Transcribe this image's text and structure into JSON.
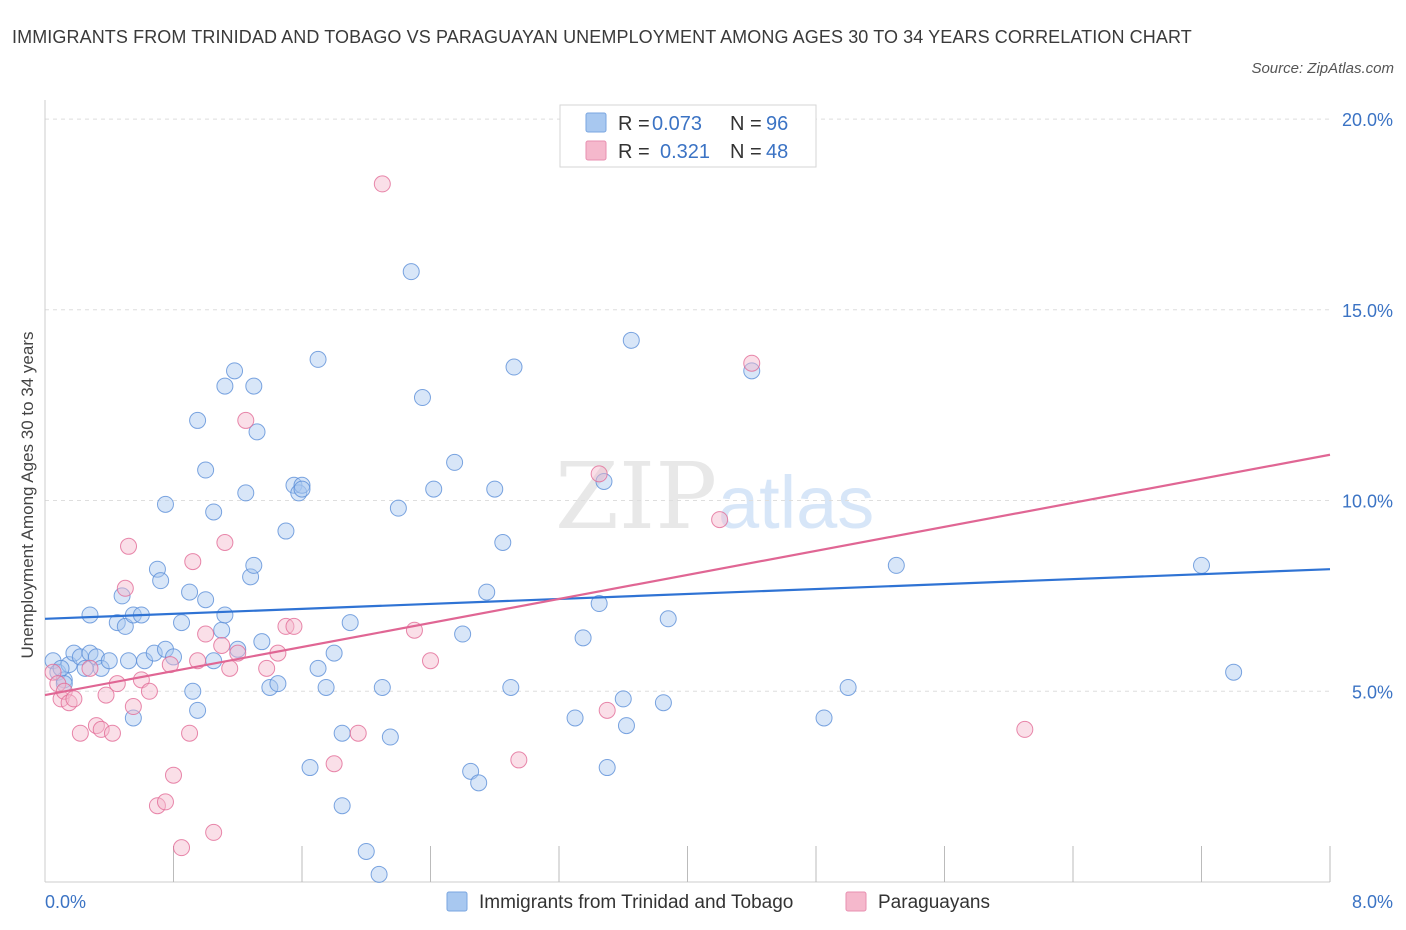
{
  "title": "IMMIGRANTS FROM TRINIDAD AND TOBAGO VS PARAGUAYAN UNEMPLOYMENT AMONG AGES 30 TO 34 YEARS CORRELATION CHART",
  "source": "Source: ZipAtlas.com",
  "watermark": {
    "zip": "ZIP",
    "atlas": "atlas"
  },
  "legend": {
    "rows": [
      {
        "r_label": "R =",
        "r_value": "0.073",
        "n_label": "N =",
        "n_value": "96",
        "color": "#a8c8f0"
      },
      {
        "r_label": "R =",
        "r_value": "0.321",
        "n_label": "N =",
        "n_value": "48",
        "color": "#f5b8cc"
      }
    ]
  },
  "bottom_legend": [
    "Immigrants from Trinidad and Tobago",
    "Paraguayans"
  ],
  "chart_data": {
    "type": "scatter",
    "title": "IMMIGRANTS FROM TRINIDAD AND TOBAGO VS PARAGUAYAN UNEMPLOYMENT AMONG AGES 30 TO 34 YEARS CORRELATION CHART",
    "xlabel": "",
    "ylabel": "Unemployment Among Ages 30 to 34 years",
    "xlim": [
      0,
      8
    ],
    "ylim": [
      0,
      20.5
    ],
    "x_tick_labels": [
      "0.0%",
      "8.0%"
    ],
    "y_ticks": [
      5,
      10,
      15,
      20
    ],
    "y_tick_labels": [
      "5.0%",
      "10.0%",
      "15.0%",
      "20.0%"
    ],
    "grid": true,
    "legend_position": "top-center",
    "series": [
      {
        "name": "Immigrants from Trinidad and Tobago",
        "color": "#5b8fd8",
        "fill": "#a8c8f0",
        "trend": [
          [
            0,
            6.9
          ],
          [
            8,
            8.2
          ]
        ],
        "points": [
          [
            0.05,
            5.8
          ],
          [
            0.08,
            5.5
          ],
          [
            0.12,
            5.3
          ],
          [
            0.15,
            5.7
          ],
          [
            0.18,
            6.0
          ],
          [
            0.22,
            5.9
          ],
          [
            0.25,
            5.6
          ],
          [
            0.28,
            6.0
          ],
          [
            0.32,
            5.9
          ],
          [
            0.35,
            5.6
          ],
          [
            0.1,
            5.6
          ],
          [
            0.12,
            5.2
          ],
          [
            0.4,
            5.8
          ],
          [
            0.45,
            6.8
          ],
          [
            0.5,
            6.7
          ],
          [
            0.55,
            7.0
          ],
          [
            0.6,
            7.0
          ],
          [
            0.28,
            7.0
          ],
          [
            0.48,
            7.5
          ],
          [
            0.52,
            5.8
          ],
          [
            0.62,
            5.8
          ],
          [
            0.68,
            6.0
          ],
          [
            0.75,
            6.1
          ],
          [
            0.8,
            5.9
          ],
          [
            0.85,
            6.8
          ],
          [
            0.9,
            7.6
          ],
          [
            0.92,
            5.0
          ],
          [
            0.95,
            4.5
          ],
          [
            1.0,
            7.4
          ],
          [
            1.05,
            5.8
          ],
          [
            1.1,
            6.6
          ],
          [
            1.12,
            7.0
          ],
          [
            1.2,
            6.1
          ],
          [
            1.25,
            10.2
          ],
          [
            1.28,
            8.0
          ],
          [
            1.3,
            8.3
          ],
          [
            1.35,
            6.3
          ],
          [
            1.4,
            5.1
          ],
          [
            1.45,
            5.2
          ],
          [
            1.5,
            9.2
          ],
          [
            1.55,
            10.4
          ],
          [
            1.58,
            10.2
          ],
          [
            1.6,
            10.4
          ],
          [
            1.65,
            3.0
          ],
          [
            1.7,
            5.6
          ],
          [
            1.75,
            5.1
          ],
          [
            1.8,
            6.0
          ],
          [
            1.85,
            3.9
          ],
          [
            1.9,
            6.8
          ],
          [
            0.55,
            4.3
          ],
          [
            0.7,
            8.2
          ],
          [
            0.72,
            7.9
          ],
          [
            0.75,
            9.9
          ],
          [
            0.95,
            12.1
          ],
          [
            1.0,
            10.8
          ],
          [
            1.05,
            9.7
          ],
          [
            1.12,
            13.0
          ],
          [
            1.18,
            13.4
          ],
          [
            1.3,
            13.0
          ],
          [
            1.32,
            11.8
          ],
          [
            1.6,
            10.3
          ],
          [
            1.7,
            13.7
          ],
          [
            2.1,
            5.1
          ],
          [
            2.2,
            9.8
          ],
          [
            2.28,
            16.0
          ],
          [
            2.35,
            12.7
          ],
          [
            2.42,
            10.3
          ],
          [
            2.55,
            11.0
          ],
          [
            2.6,
            6.5
          ],
          [
            2.65,
            2.9
          ],
          [
            2.7,
            2.6
          ],
          [
            2.75,
            7.6
          ],
          [
            2.8,
            10.3
          ],
          [
            2.85,
            8.9
          ],
          [
            2.9,
            5.1
          ],
          [
            2.92,
            13.5
          ],
          [
            3.3,
            4.3
          ],
          [
            3.35,
            6.4
          ],
          [
            3.45,
            7.3
          ],
          [
            3.48,
            10.5
          ],
          [
            3.5,
            3.0
          ],
          [
            3.6,
            4.8
          ],
          [
            3.62,
            4.1
          ],
          [
            3.65,
            14.2
          ],
          [
            3.85,
            4.7
          ],
          [
            3.88,
            6.9
          ],
          [
            4.4,
            13.4
          ],
          [
            4.85,
            4.3
          ],
          [
            5.0,
            5.1
          ],
          [
            5.3,
            8.3
          ],
          [
            7.2,
            8.3
          ],
          [
            7.4,
            5.5
          ],
          [
            2.15,
            3.8
          ],
          [
            2.0,
            0.8
          ],
          [
            2.08,
            0.2
          ],
          [
            1.85,
            2.0
          ]
        ]
      },
      {
        "name": "Paraguayans",
        "color": "#e26a96",
        "fill": "#f5b8cc",
        "trend": [
          [
            0,
            4.9
          ],
          [
            8,
            11.2
          ]
        ],
        "points": [
          [
            0.05,
            5.5
          ],
          [
            0.08,
            5.2
          ],
          [
            0.1,
            4.8
          ],
          [
            0.12,
            5.0
          ],
          [
            0.15,
            4.7
          ],
          [
            0.18,
            4.8
          ],
          [
            0.22,
            3.9
          ],
          [
            0.28,
            5.6
          ],
          [
            0.32,
            4.1
          ],
          [
            0.35,
            4.0
          ],
          [
            0.38,
            4.9
          ],
          [
            0.42,
            3.9
          ],
          [
            0.45,
            5.2
          ],
          [
            0.5,
            7.7
          ],
          [
            0.52,
            8.8
          ],
          [
            0.55,
            4.6
          ],
          [
            0.6,
            5.3
          ],
          [
            0.65,
            5.0
          ],
          [
            0.7,
            2.0
          ],
          [
            0.75,
            2.1
          ],
          [
            0.8,
            2.8
          ],
          [
            0.85,
            0.9
          ],
          [
            0.9,
            3.9
          ],
          [
            0.92,
            8.4
          ],
          [
            0.95,
            5.8
          ],
          [
            1.0,
            6.5
          ],
          [
            1.05,
            1.3
          ],
          [
            1.1,
            6.2
          ],
          [
            1.12,
            8.9
          ],
          [
            1.15,
            5.6
          ],
          [
            1.2,
            6.0
          ],
          [
            1.25,
            12.1
          ],
          [
            1.38,
            5.6
          ],
          [
            1.45,
            6.0
          ],
          [
            1.5,
            6.7
          ],
          [
            1.55,
            6.7
          ],
          [
            1.8,
            3.1
          ],
          [
            1.95,
            3.9
          ],
          [
            2.1,
            18.3
          ],
          [
            2.3,
            6.6
          ],
          [
            2.4,
            5.8
          ],
          [
            2.95,
            3.2
          ],
          [
            3.45,
            10.7
          ],
          [
            3.5,
            4.5
          ],
          [
            4.2,
            9.5
          ],
          [
            4.4,
            13.6
          ],
          [
            6.1,
            4.0
          ],
          [
            0.78,
            5.7
          ]
        ]
      }
    ]
  }
}
